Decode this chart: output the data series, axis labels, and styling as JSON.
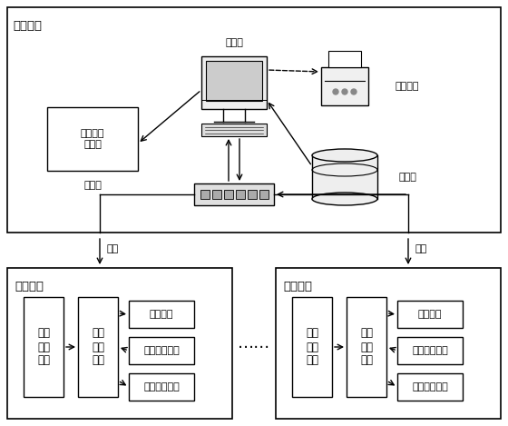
{
  "fig_width": 5.6,
  "fig_height": 4.69,
  "dpi": 100,
  "bg_color": "#ffffff",
  "station_label": "站控中心",
  "field1_label": "现场装置",
  "field2_label": "现场装置",
  "upper_pc_label": "上位机",
  "printer_label": "打印报表",
  "database_label": "数据库",
  "ethernet_label": "以太网",
  "heatmap_label": "生成热力\n分布图",
  "fiber1_label": "光纤",
  "fiber2_label": "光纤",
  "left_tall_boxes": [
    "温度\n采集\n单元",
    "数据\n处理\n单元"
  ],
  "right_small_boxes_left": [
    "报警单元",
    "阈值设置单元",
    "温度显示单元"
  ],
  "right_tall_boxes": [
    "温度\n采集\n单元",
    "数据\n处理\n单元"
  ],
  "right_small_boxes_right": [
    "报警单元",
    "阈值设置单元",
    "温度显示单元"
  ],
  "dots_label": "……"
}
